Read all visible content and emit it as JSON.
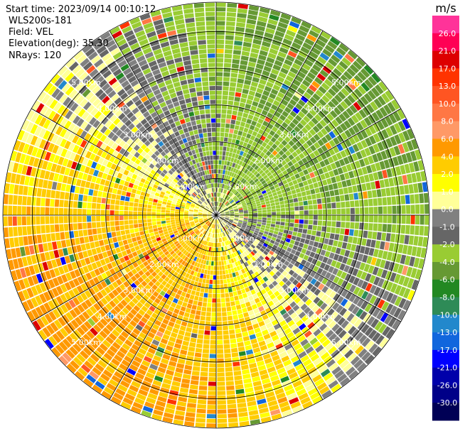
{
  "header": {
    "start_time": "Start time: 2023/09/14 00:10:12",
    "device": "WLS200s-181",
    "field": "Field: VEL",
    "elevation": "Elevation(deg): 35.30",
    "nrays": "NRays: 120"
  },
  "colorbar": {
    "unit": "m/s",
    "ticks": [
      "26.0",
      "21.0",
      "17.0",
      "13.0",
      "10.0",
      "8.0",
      "6.0",
      "4.0",
      "2.0",
      "1.0",
      "0.0",
      "-1.0",
      "-2.0",
      "-4.0",
      "-6.0",
      "-8.0",
      "-10.0",
      "-13.0",
      "-17.0",
      "-21.0",
      "-26.0",
      "-30.0"
    ],
    "colors": [
      "#ff3399",
      "#ff0055",
      "#dd0000",
      "#ff3300",
      "#ff5522",
      "#ff7744",
      "#ff9966",
      "#ff9900",
      "#ffcc00",
      "#ffff00",
      "#ffff99",
      "#808080",
      "#666666",
      "#99cc33",
      "#669933",
      "#228822",
      "#2e8b57",
      "#2288cc",
      "#1166dd",
      "#0000ff",
      "#0000aa",
      "#000088",
      "#000055"
    ]
  },
  "chart_data": {
    "type": "ppi-radar",
    "field": "VEL",
    "unit": "m/s",
    "nrays": 120,
    "elevation_deg": 35.3,
    "range_rings_km": [
      1,
      2,
      3,
      4,
      5
    ],
    "range_ring_labels": [
      "1.00km",
      "2.00km",
      "3.00km",
      "4.00km",
      "5.00km"
    ],
    "max_range_km": 5.8,
    "sector_lines_deg": [
      0,
      30,
      60,
      90,
      120,
      150,
      180,
      210,
      240,
      270,
      300,
      330
    ],
    "velocity_pattern": {
      "mean_direction_deg": 225,
      "amplitude_ms": 5,
      "description_values": "positive (yellow/orange) toward lower-left, negative (green) toward upper-right"
    }
  }
}
